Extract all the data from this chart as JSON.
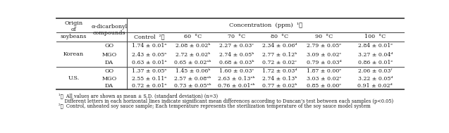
{
  "col0_header": "Origin\nof\nsoybeans",
  "col1_header": "α-dicarbonyl\ncompounds",
  "conc_header": "Concentration  (ppm)  ¹⧣",
  "subheaders": [
    "Control  ²⧣",
    "60  °C",
    "70  °C",
    "80  °C",
    "90  °C",
    "100  °C"
  ],
  "origin_labels": [
    "Korean",
    "U.S."
  ],
  "compound_labels": [
    "GO",
    "MGO",
    "DA",
    "GO",
    "MGO",
    "DA"
  ],
  "rows": [
    [
      "1.74 ± 0.01ᵃ",
      "2.08 ± 0.02ᵇ",
      "2.27 ± 0.03ᶜ",
      "2.34 ± 0.06ᵈ",
      "2.79 ± 0.05ᵉ",
      "2.84 ± 0.01ᵉ"
    ],
    [
      "2.43 ± 0.05ᵃ",
      "2.72 ± 0.02ᵇ",
      "2.74 ± 0.05ᵇ",
      "2.77 ± 0.12ᵇ",
      "3.09 ± 0.02ᶜ",
      "3.27 ± 0.04ᵈ"
    ],
    [
      "0.63 ± 0.01ᵃ",
      "0.65 ± 0.02ᵃᵇ",
      "0.68 ± 0.03ᵇ",
      "0.72 ± 0.02ᶜ",
      "0.79 ± 0.03ᵈ",
      "0.86 ± 0.01ᵉ"
    ],
    [
      "1.37 ± 0.05ᵃ",
      "1.45 ± 0.06ᵇ",
      "1.60 ± 0.03ᶜ",
      "1.72 ± 0.03ᵈ",
      "1.87 ± 0.00ᵉ",
      "2.06 ± 0.03ᶠ"
    ],
    [
      "2.55 ± 0.11ᵃ",
      "2.57 ± 0.08ᵃᵇ",
      "2.63 ± 0.13ᵃᵇ",
      "2.74 ± 0.13ᵇ",
      "3.03 ± 0.02ᶜ",
      "3.22 ± 0.05ᵈ"
    ],
    [
      "0.72 ± 0.01ᵃ",
      "0.73 ± 0.05ᵃᵇ",
      "0.76 ± 0.01ᵃᵇ",
      "0.77 ± 0.02ᵇ",
      "0.85 ± 0.00ᶜ",
      "0.91 ± 0.02ᵈ"
    ]
  ],
  "footnote1": "¹⧣  All values are shown as mean ± S.D. (standard deviation) (n=3)",
  "footnote2": "    Different letters in each horizontal lines indicate significant mean differences according to Duncan’s test between each samples (p<0.05)",
  "footnote3": "²⧣  Control, unheated soy sauce sample; Each temperature represents the sterilization temperature of the soy sauce model system",
  "font_size": 5.8,
  "footnote_font_size": 4.8,
  "text_color": "#1a1a1a",
  "line_color": "#444444"
}
